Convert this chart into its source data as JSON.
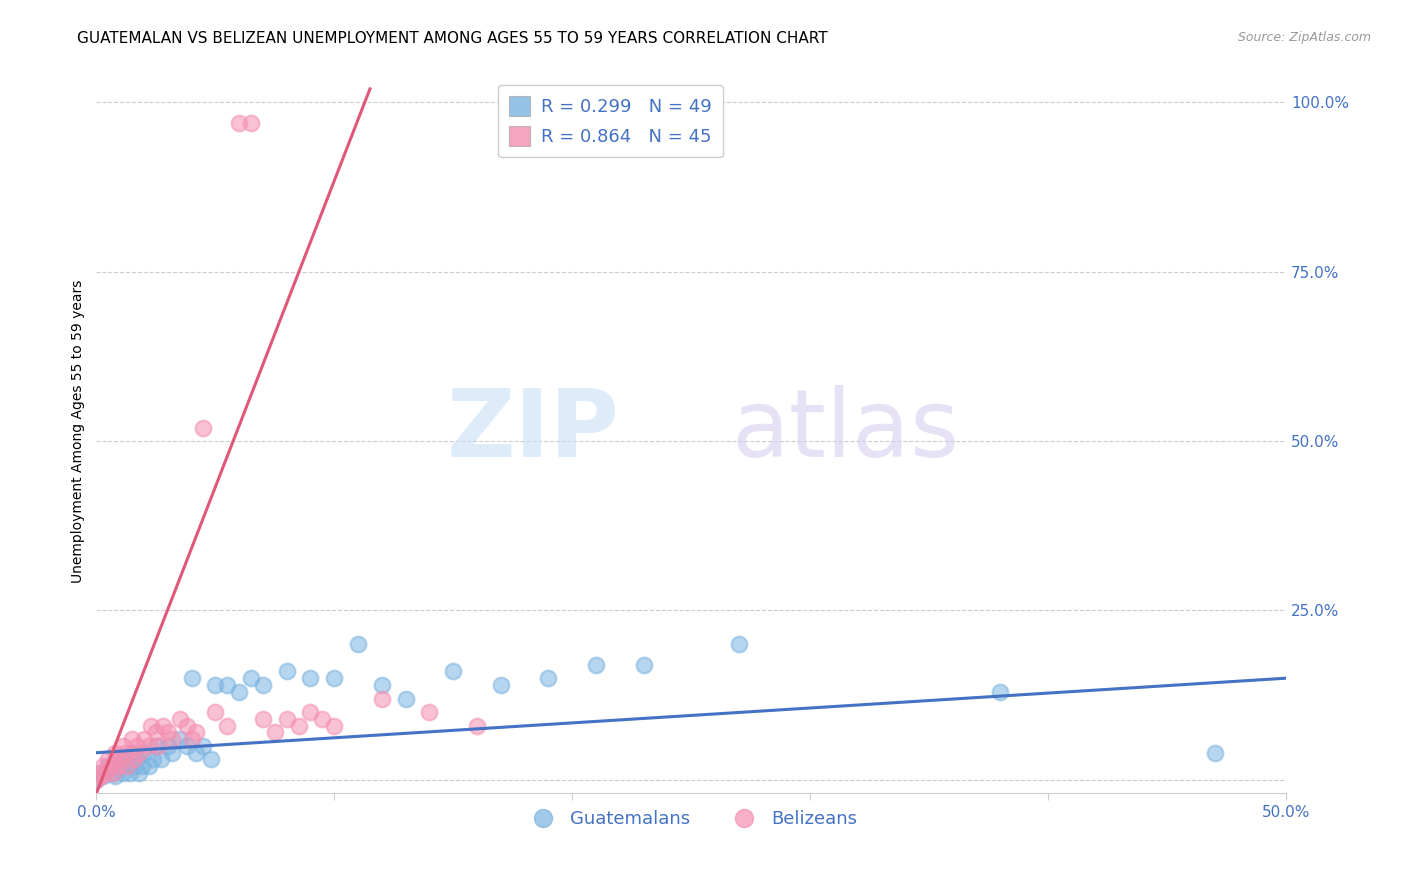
{
  "title": "GUATEMALAN VS BELIZEAN UNEMPLOYMENT AMONG AGES 55 TO 59 YEARS CORRELATION CHART",
  "source": "Source: ZipAtlas.com",
  "ylabel": "Unemployment Among Ages 55 to 59 years",
  "xlim": [
    0.0,
    0.5
  ],
  "ylim": [
    -0.02,
    1.05
  ],
  "xticks": [
    0.0,
    0.1,
    0.2,
    0.3,
    0.4,
    0.5
  ],
  "xticklabels": [
    "0.0%",
    "",
    "",
    "",
    "",
    "50.0%"
  ],
  "yticks_right": [
    0.25,
    0.5,
    0.75,
    1.0
  ],
  "yticklabels_right": [
    "25.0%",
    "50.0%",
    "75.0%",
    "100.0%"
  ],
  "legend_entries": [
    {
      "label": "R = 0.299   N = 49",
      "color": "#a8c8f0"
    },
    {
      "label": "R = 0.864   N = 45",
      "color": "#f4a0b0"
    }
  ],
  "legend_label_guatemalans": "Guatemalans",
  "legend_label_belizeans": "Belizeans",
  "blue_scatter_color": "#7ab3e0",
  "pink_scatter_color": "#f48fb1",
  "blue_line_color": "#4472c4",
  "pink_line_color": "#e05878",
  "guatemalan_x": [
    0.0,
    0.002,
    0.003,
    0.005,
    0.007,
    0.008,
    0.009,
    0.01,
    0.011,
    0.012,
    0.013,
    0.014,
    0.015,
    0.016,
    0.017,
    0.018,
    0.019,
    0.02,
    0.022,
    0.024,
    0.025,
    0.027,
    0.03,
    0.032,
    0.035,
    0.038,
    0.04,
    0.042,
    0.045,
    0.048,
    0.05,
    0.055,
    0.06,
    0.065,
    0.07,
    0.08,
    0.09,
    0.1,
    0.11,
    0.12,
    0.13,
    0.15,
    0.17,
    0.19,
    0.21,
    0.23,
    0.27,
    0.38,
    0.47
  ],
  "guatemalan_y": [
    0.0,
    0.01,
    0.005,
    0.02,
    0.01,
    0.005,
    0.03,
    0.02,
    0.01,
    0.03,
    0.02,
    0.01,
    0.04,
    0.02,
    0.03,
    0.01,
    0.02,
    0.04,
    0.02,
    0.03,
    0.05,
    0.03,
    0.05,
    0.04,
    0.06,
    0.05,
    0.15,
    0.04,
    0.05,
    0.03,
    0.14,
    0.14,
    0.13,
    0.15,
    0.14,
    0.16,
    0.15,
    0.15,
    0.2,
    0.14,
    0.12,
    0.16,
    0.14,
    0.15,
    0.17,
    0.17,
    0.2,
    0.13,
    0.04
  ],
  "belizean_x": [
    0.0,
    0.001,
    0.002,
    0.003,
    0.004,
    0.005,
    0.006,
    0.007,
    0.008,
    0.009,
    0.01,
    0.011,
    0.012,
    0.013,
    0.015,
    0.016,
    0.017,
    0.018,
    0.02,
    0.022,
    0.023,
    0.025,
    0.026,
    0.028,
    0.03,
    0.032,
    0.035,
    0.038,
    0.04,
    0.042,
    0.045,
    0.05,
    0.055,
    0.06,
    0.065,
    0.07,
    0.075,
    0.08,
    0.085,
    0.09,
    0.095,
    0.1,
    0.12,
    0.14,
    0.16
  ],
  "belizean_y": [
    0.0,
    0.01,
    0.005,
    0.02,
    0.01,
    0.03,
    0.02,
    0.01,
    0.04,
    0.02,
    0.03,
    0.05,
    0.04,
    0.02,
    0.06,
    0.03,
    0.05,
    0.04,
    0.06,
    0.05,
    0.08,
    0.07,
    0.05,
    0.08,
    0.07,
    0.06,
    0.09,
    0.08,
    0.06,
    0.07,
    0.52,
    0.1,
    0.08,
    0.97,
    0.97,
    0.09,
    0.07,
    0.09,
    0.08,
    0.1,
    0.09,
    0.08,
    0.12,
    0.1,
    0.08
  ],
  "blue_trendline_x": [
    0.0,
    0.5
  ],
  "blue_trendline_y": [
    0.04,
    0.15
  ],
  "pink_trendline_x": [
    0.0,
    0.115
  ],
  "pink_trendline_y": [
    -0.02,
    1.02
  ],
  "title_fontsize": 11,
  "axis_label_fontsize": 10,
  "tick_fontsize": 11,
  "source_fontsize": 9
}
